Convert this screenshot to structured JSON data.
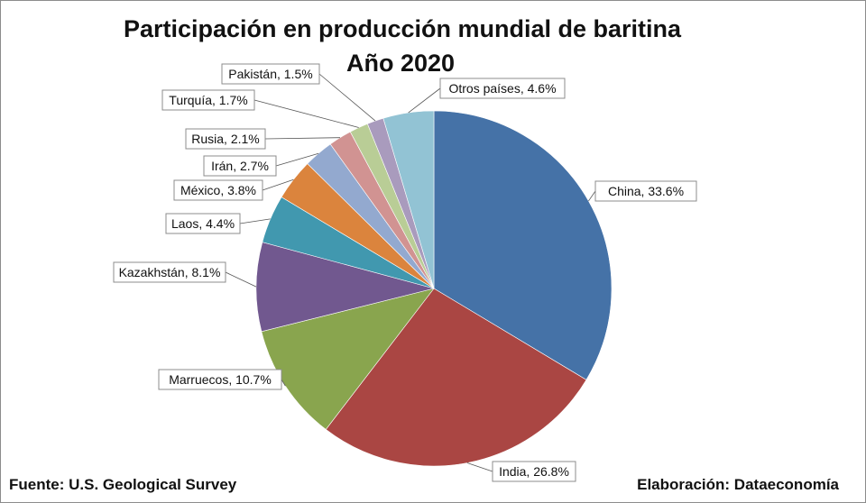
{
  "chart_data": {
    "type": "pie",
    "title": "Participación en producción mundial de baritina",
    "subtitle": "Año 2020",
    "slices": [
      {
        "label": "China, 33.6%",
        "value": 33.6,
        "color": "#4572a7"
      },
      {
        "label": "India, 26.8%",
        "value": 26.8,
        "color": "#aa4643"
      },
      {
        "label": "Marruecos, 10.7%",
        "value": 10.7,
        "color": "#89a54e"
      },
      {
        "label": "Kazakhstán, 8.1%",
        "value": 8.1,
        "color": "#71588f"
      },
      {
        "label": "Laos, 4.4%",
        "value": 4.4,
        "color": "#4198af"
      },
      {
        "label": "México, 3.8%",
        "value": 3.8,
        "color": "#db843d"
      },
      {
        "label": "Irán, 2.7%",
        "value": 2.7,
        "color": "#93a9cf"
      },
      {
        "label": "Rusia, 2.1%",
        "value": 2.1,
        "color": "#d19392"
      },
      {
        "label": "Turquía, 1.7%",
        "value": 1.7,
        "color": "#b9cd96"
      },
      {
        "label": "Pakistán, 1.5%",
        "value": 1.5,
        "color": "#a99bbd"
      },
      {
        "label": "Otros países, 4.6%",
        "value": 4.6,
        "color": "#92c3d4"
      }
    ]
  },
  "footer": {
    "source": "Fuente: U.S. Geological Survey",
    "credit": "Elaboración: Dataeconomía"
  }
}
